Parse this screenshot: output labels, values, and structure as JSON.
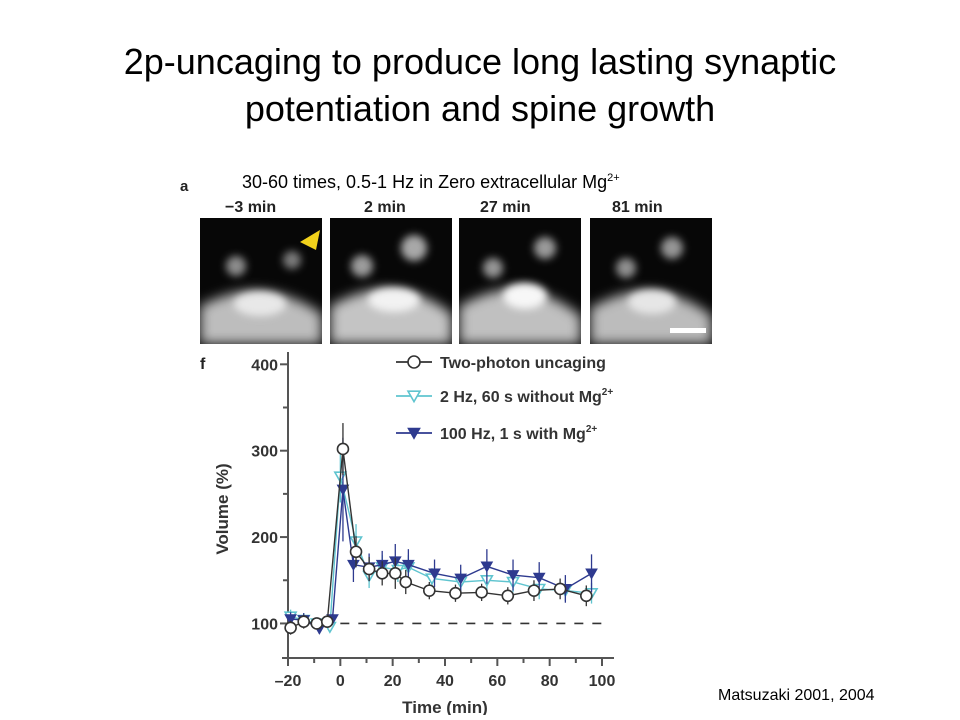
{
  "slide": {
    "title_line1": "2p-uncaging to produce long lasting synaptic",
    "title_line2": "potentiation and spine growth",
    "caption": "30-60 times, 0.5-1 Hz in Zero extracellular Mg",
    "caption_sup": "2+",
    "citation": "Matsuzaki 2001, 2004"
  },
  "panel_a": {
    "letter": "a",
    "timepoints": [
      "−3 min",
      "2 min",
      "27 min",
      "81 min"
    ],
    "marker_color": "#f2d21b"
  },
  "chart_data": {
    "type": "line",
    "panel_letter": "f",
    "xlabel": "Time (min)",
    "ylabel": "Volume (%)",
    "xlim": [
      -20,
      100
    ],
    "ylim": [
      60,
      405
    ],
    "xticks": [
      -20,
      0,
      20,
      40,
      60,
      80,
      100
    ],
    "xtick_labels": [
      "–20",
      "0",
      "20",
      "40",
      "60",
      "80",
      "100"
    ],
    "yticks": [
      100,
      200,
      300,
      400
    ],
    "grid": false,
    "legend_position": "top-right",
    "baseline": 100,
    "series": [
      {
        "name": "Two-photon uncaging",
        "marker": "open-circle",
        "color": "#333333",
        "x": [
          -19,
          -14,
          -9,
          -5,
          1,
          6,
          11,
          16,
          21,
          25,
          34,
          44,
          54,
          64,
          74,
          84,
          94
        ],
        "y": [
          95,
          102,
          100,
          102,
          302,
          183,
          163,
          158,
          158,
          148,
          138,
          135,
          136,
          132,
          138,
          140,
          132
        ],
        "err": [
          8,
          8,
          6,
          6,
          30,
          18,
          14,
          14,
          18,
          14,
          10,
          10,
          10,
          10,
          12,
          12,
          12
        ]
      },
      {
        "name": "2 Hz, 60 s without Mg",
        "name_sup": "2+",
        "marker": "open-triangle-down",
        "color": "#5fc4cf",
        "x": [
          -19,
          -14,
          -9,
          -4,
          0,
          6,
          11,
          16,
          22,
          26,
          35,
          46,
          56,
          66,
          76,
          86,
          96
        ],
        "y": [
          108,
          104,
          100,
          96,
          270,
          195,
          155,
          165,
          162,
          165,
          152,
          148,
          150,
          148,
          140,
          138,
          135
        ],
        "err": [
          8,
          8,
          6,
          6,
          30,
          20,
          14,
          14,
          14,
          14,
          12,
          12,
          12,
          12,
          12,
          12,
          12
        ]
      },
      {
        "name": "100 Hz, 1 s with Mg",
        "name_sup": "2+",
        "marker": "filled-triangle-down",
        "color": "#2e3a8f",
        "x": [
          -19,
          -14,
          -8,
          -3,
          1,
          5,
          11,
          16,
          21,
          26,
          36,
          46,
          56,
          66,
          76,
          86,
          96
        ],
        "y": [
          105,
          104,
          94,
          105,
          255,
          168,
          165,
          168,
          172,
          168,
          158,
          152,
          166,
          156,
          153,
          140,
          158
        ],
        "err": [
          8,
          8,
          6,
          6,
          60,
          20,
          16,
          16,
          20,
          18,
          16,
          16,
          20,
          18,
          18,
          16,
          22
        ]
      }
    ]
  }
}
